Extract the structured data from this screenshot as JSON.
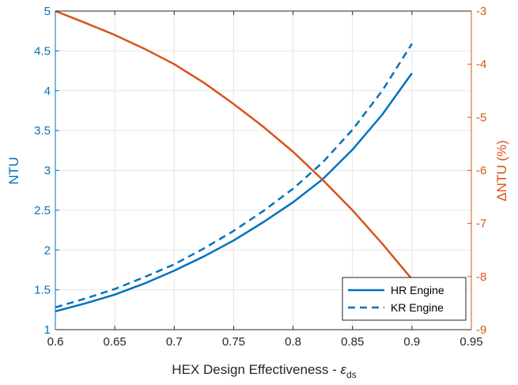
{
  "chart_data": {
    "type": "line",
    "title": "",
    "xlabel": "HEX Design Effectiveness - ",
    "xlabel_symbol": "ε",
    "xlabel_subscript": "ds",
    "xlim": [
      0.6,
      0.95
    ],
    "xticks": [
      "0.6",
      "0.65",
      "0.7",
      "0.75",
      "0.8",
      "0.85",
      "0.9",
      "0.95"
    ],
    "left_axis": {
      "label": "NTU",
      "color": "#0072BD",
      "ylim": [
        1,
        5
      ],
      "ticks": [
        "1",
        "1.5",
        "2",
        "2.5",
        "3",
        "3.5",
        "4",
        "4.5",
        "5"
      ]
    },
    "right_axis": {
      "label": "ΔNTU (%)",
      "color": "#D95319",
      "ylim": [
        -9,
        -3
      ],
      "ticks": [
        "-3",
        "-4",
        "-5",
        "-6",
        "-7",
        "-8",
        "-9"
      ]
    },
    "grid": true,
    "legend_position": "bottom-right",
    "series": [
      {
        "name": "HR Engine",
        "axis": "left",
        "color": "#0072BD",
        "style": "solid",
        "x": [
          0.6,
          0.625,
          0.65,
          0.675,
          0.7,
          0.725,
          0.75,
          0.775,
          0.8,
          0.825,
          0.85,
          0.875,
          0.9
        ],
        "y": [
          1.23,
          1.33,
          1.44,
          1.58,
          1.74,
          1.92,
          2.12,
          2.35,
          2.6,
          2.89,
          3.26,
          3.7,
          4.22
        ]
      },
      {
        "name": "KR Engine",
        "axis": "left",
        "color": "#0072BD",
        "style": "dashed",
        "x": [
          0.6,
          0.625,
          0.65,
          0.675,
          0.7,
          0.725,
          0.75,
          0.775,
          0.8,
          0.825,
          0.85,
          0.875,
          0.9
        ],
        "y": [
          1.28,
          1.39,
          1.51,
          1.66,
          1.82,
          2.02,
          2.24,
          2.49,
          2.77,
          3.1,
          3.51,
          4.0,
          4.59
        ]
      },
      {
        "axis": "right",
        "color": "#D95319",
        "style": "solid",
        "x": [
          0.6,
          0.625,
          0.65,
          0.675,
          0.7,
          0.725,
          0.75,
          0.775,
          0.8,
          0.825,
          0.85,
          0.875,
          0.9
        ],
        "y": [
          -3.0,
          -3.22,
          -3.45,
          -3.71,
          -4.0,
          -4.35,
          -4.75,
          -5.18,
          -5.65,
          -6.18,
          -6.75,
          -7.38,
          -8.05
        ]
      }
    ]
  }
}
